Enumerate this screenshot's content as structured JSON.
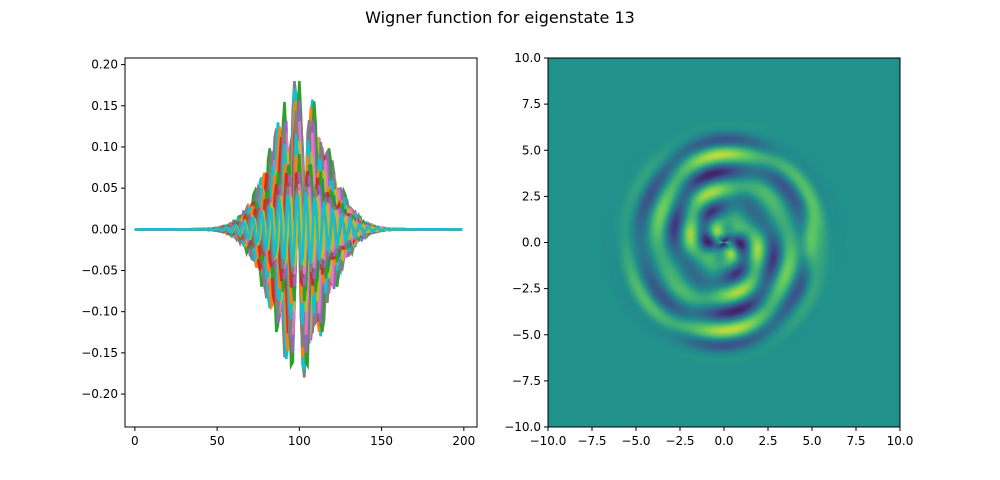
{
  "figure": {
    "title": "Wigner function for eigenstate 13"
  },
  "chart_data": [
    {
      "type": "line",
      "title": "",
      "xlabel": "",
      "ylabel": "",
      "xlim": [
        -6,
        208
      ],
      "ylim": [
        -0.24,
        0.208
      ],
      "xticks": [
        0,
        50,
        100,
        150,
        200
      ],
      "xtick_labels": [
        "0",
        "50",
        "100",
        "150",
        "200"
      ],
      "yticks": [
        0.2,
        0.15,
        0.1,
        0.05,
        0.0,
        -0.05,
        -0.1,
        -0.15,
        -0.2
      ],
      "ytick_labels": [
        "0.20",
        "0.15",
        "0.10",
        "0.05",
        "0.00",
        "−0.05",
        "−0.10",
        "−0.15",
        "−0.20"
      ],
      "grid": false,
      "legend": "none",
      "num_points": 200,
      "center_x": 100,
      "num_series": 40,
      "extrema": {
        "max_y": 0.187,
        "min_y": -0.222
      },
      "envelope_half_width_x": 60,
      "series_colors": [
        "#1f77b4",
        "#ff7f0e",
        "#2ca02c",
        "#d62728",
        "#9467bd",
        "#8c564b",
        "#e377c2",
        "#7f7f7f",
        "#bcbd22",
        "#17becf"
      ]
    },
    {
      "type": "heatmap",
      "title": "",
      "xlabel": "",
      "ylabel": "",
      "xlim": [
        -10,
        10
      ],
      "ylim": [
        -10,
        10
      ],
      "xticks": [
        -10,
        -7.5,
        -5,
        -2.5,
        0,
        2.5,
        5,
        7.5,
        10
      ],
      "xtick_labels": [
        "−10.0",
        "−7.5",
        "−5.0",
        "−2.5",
        "0.0",
        "2.5",
        "5.0",
        "7.5",
        "10.0"
      ],
      "yticks": [
        10,
        7.5,
        5,
        2.5,
        0,
        -2.5,
        -5,
        -7.5,
        -10
      ],
      "ytick_labels": [
        "10.0",
        "7.5",
        "5.0",
        "2.5",
        "0.0",
        "−2.5",
        "−5.0",
        "−7.5",
        "−10.0"
      ],
      "colormap": "viridis",
      "background_color": "#21918c",
      "grid": false,
      "quantum_number": 13,
      "outer_ring_radius": 5.0
    }
  ]
}
